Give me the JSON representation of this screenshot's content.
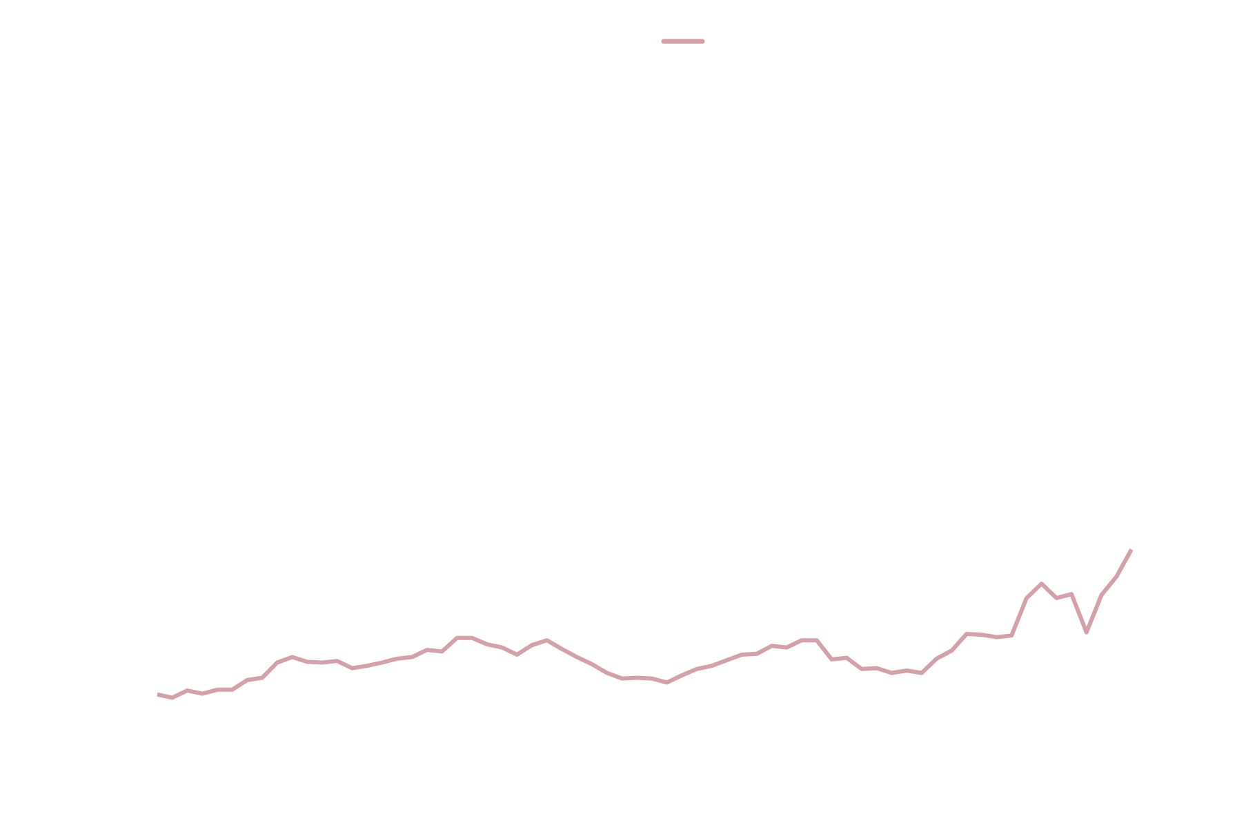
{
  "chart_data": {
    "type": "line",
    "title": "",
    "xlabel": "",
    "ylabel": "",
    "grid": false,
    "axes_visible": false,
    "legend": {
      "placement": "top-center",
      "entries": [
        {
          "name": ""
        }
      ]
    },
    "xlim": [
      0,
      65
    ],
    "ylim": [
      0,
      1
    ],
    "series": [
      {
        "name": "",
        "color": "#d4a1aa",
        "x": [
          0,
          1,
          2,
          3,
          4,
          5,
          6,
          7,
          8,
          9,
          10,
          11,
          12,
          13,
          14,
          15,
          16,
          17,
          18,
          19,
          20,
          21,
          22,
          23,
          24,
          25,
          26,
          27,
          28,
          29,
          30,
          31,
          32,
          33,
          34,
          35,
          36,
          37,
          38,
          39,
          40,
          41,
          42,
          43,
          44,
          45,
          46,
          47,
          48,
          49,
          50,
          51,
          52,
          53,
          54,
          55,
          56,
          57,
          58,
          59,
          60,
          61,
          62,
          63,
          64,
          65
        ],
        "y": [
          0.163,
          0.159,
          0.168,
          0.164,
          0.169,
          0.169,
          0.181,
          0.184,
          0.203,
          0.21,
          0.204,
          0.203,
          0.205,
          0.196,
          0.199,
          0.203,
          0.208,
          0.21,
          0.219,
          0.217,
          0.234,
          0.234,
          0.226,
          0.222,
          0.213,
          0.225,
          0.231,
          0.22,
          0.21,
          0.201,
          0.19,
          0.183,
          0.184,
          0.183,
          0.178,
          0.187,
          0.195,
          0.199,
          0.206,
          0.213,
          0.214,
          0.224,
          0.222,
          0.231,
          0.231,
          0.207,
          0.209,
          0.195,
          0.196,
          0.19,
          0.193,
          0.19,
          0.208,
          0.218,
          0.239,
          0.238,
          0.235,
          0.237,
          0.284,
          0.302,
          0.284,
          0.289,
          0.241,
          0.288,
          0.311,
          0.345
        ]
      }
    ]
  }
}
